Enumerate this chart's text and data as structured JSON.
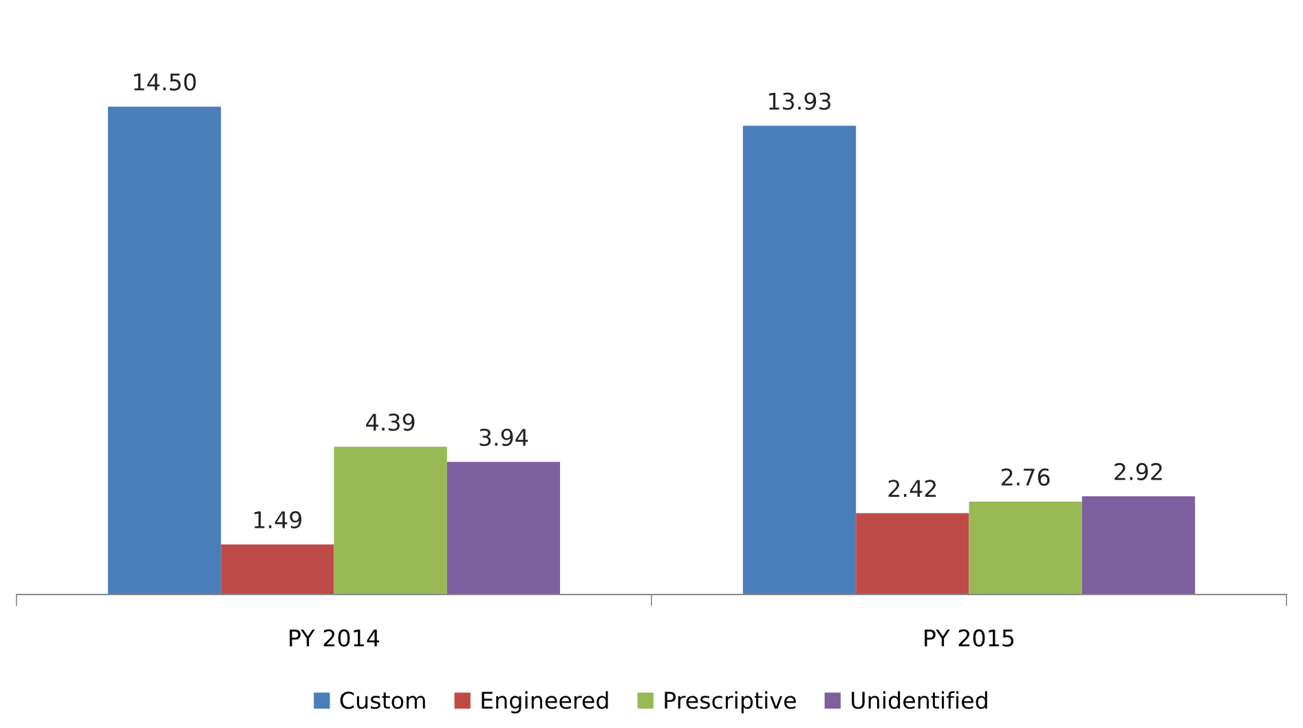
{
  "chart_data": {
    "type": "bar",
    "categories": [
      "PY 2014",
      "PY 2015"
    ],
    "series": [
      {
        "name": "Custom",
        "color": "#4a7ebb",
        "values": [
          14.5,
          13.93
        ],
        "value_labels": [
          "14.50",
          "13.93"
        ]
      },
      {
        "name": "Engineered",
        "color": "#be4b48",
        "values": [
          1.49,
          2.42
        ],
        "value_labels": [
          "1.49",
          "2.42"
        ]
      },
      {
        "name": "Prescriptive",
        "color": "#98b954",
        "values": [
          4.39,
          2.76
        ],
        "value_labels": [
          "4.39",
          "2.76"
        ]
      },
      {
        "name": "Unidentified",
        "color": "#7d60a0",
        "values": [
          3.94,
          2.92
        ],
        "value_labels": [
          "3.94",
          "2.92"
        ]
      }
    ],
    "grid": false,
    "legend": "bottom",
    "tick_labels": "x"
  }
}
